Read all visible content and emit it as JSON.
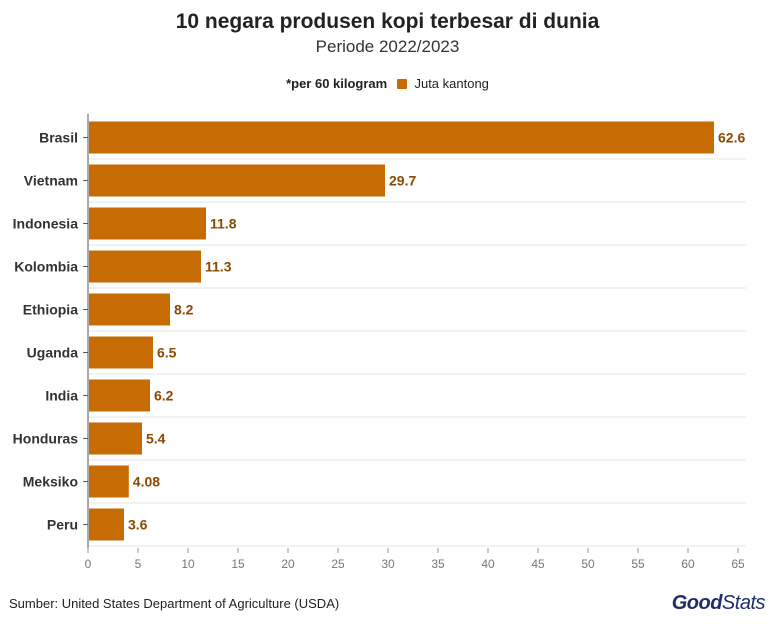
{
  "chart_data": {
    "type": "bar",
    "orientation": "horizontal",
    "title": "10 negara produsen kopi terbesar di dunia",
    "subtitle": "Periode 2022/2023",
    "note": "*per 60 kilogram",
    "legend": [
      "Juta kantong"
    ],
    "categories": [
      "Brasil",
      "Vietnam",
      "Indonesia",
      "Kolombia",
      "Ethiopia",
      "Uganda",
      "India",
      "Honduras",
      "Meksiko",
      "Peru"
    ],
    "values": [
      62.6,
      29.7,
      11.8,
      11.3,
      8.2,
      6.5,
      6.2,
      5.4,
      4.08,
      3.6
    ],
    "labels": [
      "62.6",
      "29.7",
      "11.8",
      "11.3",
      "8.2",
      "6.5",
      "6.2",
      "5.4",
      "4.08",
      "3.6"
    ],
    "xlim": [
      0,
      65
    ],
    "xticks": [
      0,
      5,
      10,
      15,
      20,
      25,
      30,
      35,
      40,
      45,
      50,
      55,
      60,
      65
    ],
    "bar_color": "#c76b04",
    "label_color": "#8a4a03"
  },
  "footer": {
    "source": "Sumber: United States Department of Agriculture (USDA)",
    "logo_good": "Good",
    "logo_stats": "Stats"
  }
}
